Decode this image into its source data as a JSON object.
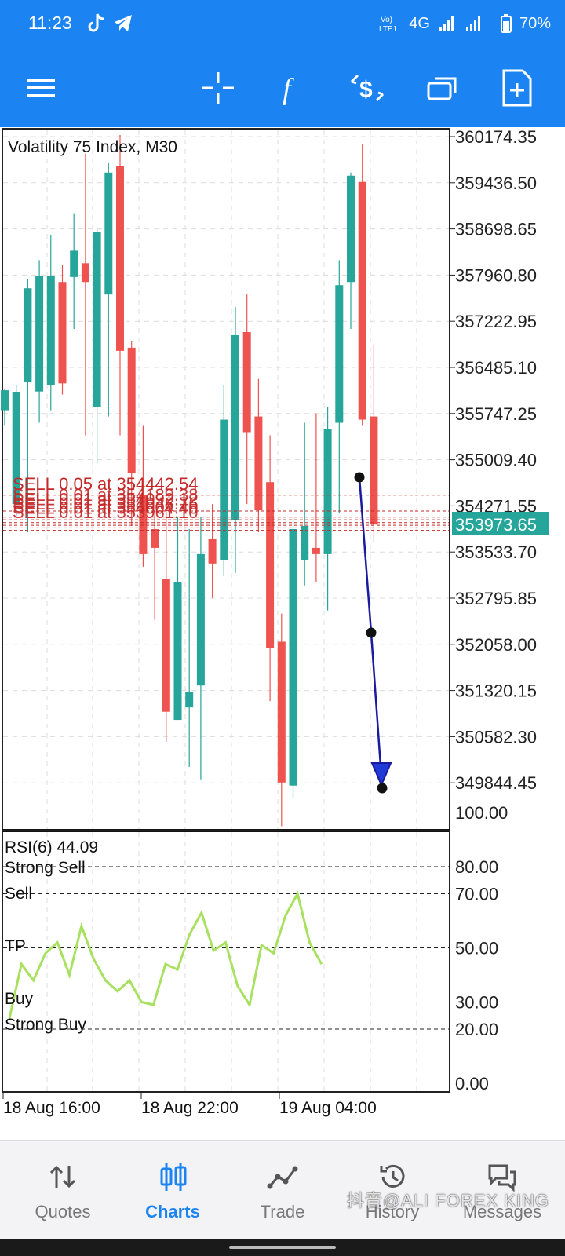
{
  "status_bar": {
    "time": "11:23",
    "network": "4G",
    "battery": "70%",
    "icons": [
      "tiktok-icon",
      "telegram-icon",
      "volte-icon",
      "signal-icon",
      "battery-icon"
    ]
  },
  "toolbar": {
    "icons": [
      "menu-icon",
      "crosshair-icon",
      "indicators-icon",
      "new-order-icon",
      "windows-icon",
      "new-chart-icon"
    ],
    "color": "#1b84f2"
  },
  "chart": {
    "title": "Volatility 75 Index, M30",
    "current_price": "353973.65",
    "price_ticks": [
      "360174.35",
      "359436.50",
      "358698.65",
      "357960.80",
      "357222.95",
      "356485.10",
      "355747.25",
      "355009.40",
      "354271.55",
      "353533.70",
      "352795.85",
      "352058.00",
      "351320.15",
      "350582.30",
      "349844.45"
    ],
    "order_label": "SELL 0.05 at 354442.54",
    "order_labels_overlap": [
      "SELL 0.01 at 354189.38",
      "SELL 0.01 at 354092.12",
      "SELL 0.01 at 354048.76",
      "SELL 0.01 at 354004.40",
      "SELL 0.01 at 353961.10"
    ],
    "time_labels": [
      "18 Aug 16:00",
      "18 Aug 22:00",
      "19 Aug 04:00"
    ],
    "colors": {
      "bull": "#26a69a",
      "bear": "#ef5350",
      "order_line": "#c62828",
      "arrow": "#1a1a9e",
      "rsi": "#a8e05f"
    }
  },
  "rsi": {
    "title": "RSI(6) 44.09",
    "levels": [
      {
        "label": "Strong Sell",
        "value": "80.00"
      },
      {
        "label": "Sell",
        "value": "70.00"
      },
      {
        "label": "TP",
        "value": "50.00"
      },
      {
        "label": "Buy",
        "value": "30.00"
      },
      {
        "label": "Strong Buy",
        "value": "20.00"
      }
    ],
    "scale_top": "100.00",
    "scale_bottom": "0.00"
  },
  "nav": {
    "items": [
      {
        "label": "Quotes",
        "icon": "quotes-icon"
      },
      {
        "label": "Charts",
        "icon": "charts-icon",
        "active": true
      },
      {
        "label": "Trade",
        "icon": "trade-icon"
      },
      {
        "label": "History",
        "icon": "history-icon"
      },
      {
        "label": "Messages",
        "icon": "messages-icon"
      }
    ]
  },
  "watermark": "抖音@ALI FOREX KING"
}
